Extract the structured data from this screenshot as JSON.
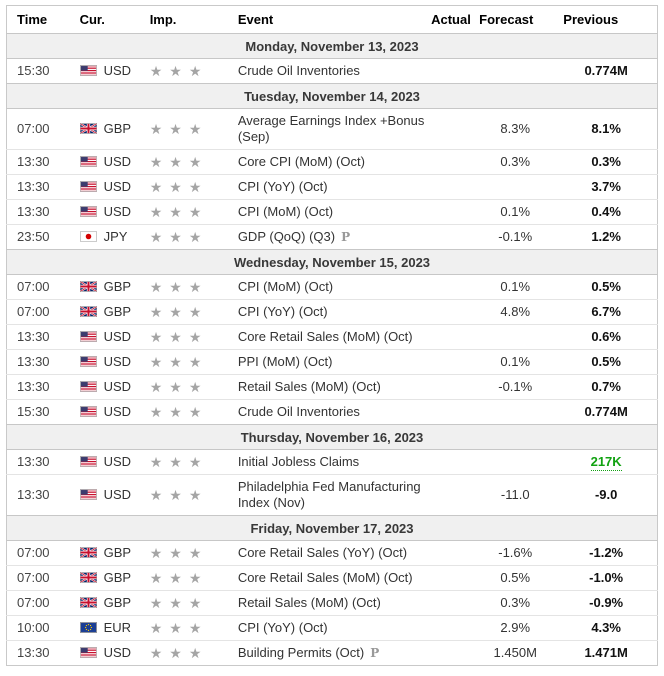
{
  "colors": {
    "positive": "#12a212",
    "star": "#a5a5a5",
    "day_row_background": "#f0f0f0"
  },
  "icons": {
    "star_glyph": "★",
    "preliminary_glyph": "P"
  },
  "calendar": {
    "columns": [
      {
        "key": "time",
        "label": "Time"
      },
      {
        "key": "currency",
        "label": "Cur."
      },
      {
        "key": "importance",
        "label": "Imp."
      },
      {
        "key": "event",
        "label": "Event"
      },
      {
        "key": "actual",
        "label": "Actual"
      },
      {
        "key": "forecast",
        "label": "Forecast"
      },
      {
        "key": "previous",
        "label": "Previous"
      }
    ],
    "groups": [
      {
        "date": "Monday, November 13, 2023",
        "rows": [
          {
            "time": "15:30",
            "currency": "USD",
            "flag": "us",
            "importance": 3,
            "event": "Crude Oil Inventories",
            "preliminary": false,
            "actual": "",
            "forecast": "",
            "previous": "0.774M",
            "previous_highlight": ""
          }
        ]
      },
      {
        "date": "Tuesday, November 14, 2023",
        "rows": [
          {
            "time": "07:00",
            "currency": "GBP",
            "flag": "gb",
            "importance": 3,
            "event": "Average Earnings Index +Bonus (Sep)",
            "preliminary": false,
            "actual": "",
            "forecast": "8.3%",
            "previous": "8.1%",
            "previous_highlight": ""
          },
          {
            "time": "13:30",
            "currency": "USD",
            "flag": "us",
            "importance": 3,
            "event": "Core CPI (MoM) (Oct)",
            "preliminary": false,
            "actual": "",
            "forecast": "0.3%",
            "previous": "0.3%",
            "previous_highlight": ""
          },
          {
            "time": "13:30",
            "currency": "USD",
            "flag": "us",
            "importance": 3,
            "event": "CPI (YoY) (Oct)",
            "preliminary": false,
            "actual": "",
            "forecast": "",
            "previous": "3.7%",
            "previous_highlight": ""
          },
          {
            "time": "13:30",
            "currency": "USD",
            "flag": "us",
            "importance": 3,
            "event": "CPI (MoM) (Oct)",
            "preliminary": false,
            "actual": "",
            "forecast": "0.1%",
            "previous": "0.4%",
            "previous_highlight": ""
          },
          {
            "time": "23:50",
            "currency": "JPY",
            "flag": "jp",
            "importance": 3,
            "event": "GDP (QoQ) (Q3)",
            "preliminary": true,
            "actual": "",
            "forecast": "-0.1%",
            "previous": "1.2%",
            "previous_highlight": ""
          }
        ]
      },
      {
        "date": "Wednesday, November 15, 2023",
        "rows": [
          {
            "time": "07:00",
            "currency": "GBP",
            "flag": "gb",
            "importance": 3,
            "event": "CPI (MoM) (Oct)",
            "preliminary": false,
            "actual": "",
            "forecast": "0.1%",
            "previous": "0.5%",
            "previous_highlight": ""
          },
          {
            "time": "07:00",
            "currency": "GBP",
            "flag": "gb",
            "importance": 3,
            "event": "CPI (YoY) (Oct)",
            "preliminary": false,
            "actual": "",
            "forecast": "4.8%",
            "previous": "6.7%",
            "previous_highlight": ""
          },
          {
            "time": "13:30",
            "currency": "USD",
            "flag": "us",
            "importance": 3,
            "event": "Core Retail Sales (MoM) (Oct)",
            "preliminary": false,
            "actual": "",
            "forecast": "",
            "previous": "0.6%",
            "previous_highlight": ""
          },
          {
            "time": "13:30",
            "currency": "USD",
            "flag": "us",
            "importance": 3,
            "event": "PPI (MoM) (Oct)",
            "preliminary": false,
            "actual": "",
            "forecast": "0.1%",
            "previous": "0.5%",
            "previous_highlight": ""
          },
          {
            "time": "13:30",
            "currency": "USD",
            "flag": "us",
            "importance": 3,
            "event": "Retail Sales (MoM) (Oct)",
            "preliminary": false,
            "actual": "",
            "forecast": "-0.1%",
            "previous": "0.7%",
            "previous_highlight": ""
          },
          {
            "time": "15:30",
            "currency": "USD",
            "flag": "us",
            "importance": 3,
            "event": "Crude Oil Inventories",
            "preliminary": false,
            "actual": "",
            "forecast": "",
            "previous": "0.774M",
            "previous_highlight": ""
          }
        ]
      },
      {
        "date": "Thursday, November 16, 2023",
        "rows": [
          {
            "time": "13:30",
            "currency": "USD",
            "flag": "us",
            "importance": 3,
            "event": "Initial Jobless Claims",
            "preliminary": false,
            "actual": "",
            "forecast": "",
            "previous": "217K",
            "previous_highlight": "green"
          },
          {
            "time": "13:30",
            "currency": "USD",
            "flag": "us",
            "importance": 3,
            "event": "Philadelphia Fed Manufacturing Index (Nov)",
            "preliminary": false,
            "actual": "",
            "forecast": "-11.0",
            "previous": "-9.0",
            "previous_highlight": ""
          }
        ]
      },
      {
        "date": "Friday, November 17, 2023",
        "rows": [
          {
            "time": "07:00",
            "currency": "GBP",
            "flag": "gb",
            "importance": 3,
            "event": "Core Retail Sales (YoY) (Oct)",
            "preliminary": false,
            "actual": "",
            "forecast": "-1.6%",
            "previous": "-1.2%",
            "previous_highlight": ""
          },
          {
            "time": "07:00",
            "currency": "GBP",
            "flag": "gb",
            "importance": 3,
            "event": "Core Retail Sales (MoM) (Oct)",
            "preliminary": false,
            "actual": "",
            "forecast": "0.5%",
            "previous": "-1.0%",
            "previous_highlight": ""
          },
          {
            "time": "07:00",
            "currency": "GBP",
            "flag": "gb",
            "importance": 3,
            "event": "Retail Sales (MoM) (Oct)",
            "preliminary": false,
            "actual": "",
            "forecast": "0.3%",
            "previous": "-0.9%",
            "previous_highlight": ""
          },
          {
            "time": "10:00",
            "currency": "EUR",
            "flag": "eu",
            "importance": 3,
            "event": "CPI (YoY) (Oct)",
            "preliminary": false,
            "actual": "",
            "forecast": "2.9%",
            "previous": "4.3%",
            "previous_highlight": ""
          },
          {
            "time": "13:30",
            "currency": "USD",
            "flag": "us",
            "importance": 3,
            "event": "Building Permits (Oct)",
            "preliminary": true,
            "actual": "",
            "forecast": "1.450M",
            "previous": "1.471M",
            "previous_highlight": ""
          }
        ]
      }
    ]
  }
}
